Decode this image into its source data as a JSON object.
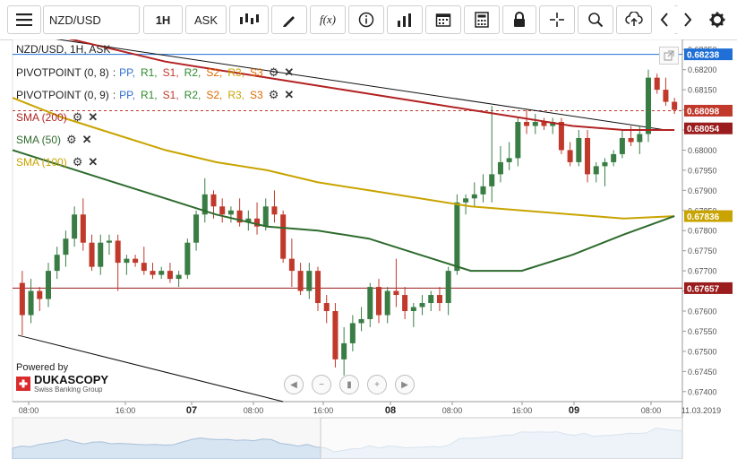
{
  "toolbar": {
    "menu_icon": "hamburger-menu-icon",
    "instrument": "NZD/USD",
    "period": "1H",
    "price_side": "ASK",
    "icons": [
      "chart-type-icon",
      "draw-pencil-icon",
      "function-icon",
      "info-icon",
      "indicators-icon",
      "calendar-icon",
      "calculator-icon",
      "lock-icon",
      "crosshair-icon",
      "zoom-icon",
      "upload-icon",
      "download-icon",
      "arrow-left-icon",
      "arrow-right-icon",
      "gear-icon"
    ]
  },
  "legend": {
    "title": "NZD/USD, 1H, ASK",
    "pivots": [
      {
        "name": "PIVOTPOINT (0, 8)",
        "colon": ":",
        "levels": [
          "PP,",
          "R1,",
          "S1,",
          "R2,",
          "S2,",
          "R3,",
          "S3"
        ]
      },
      {
        "name": "PIVOTPOINT (0, 9)",
        "colon": ":",
        "levels": [
          "PP,",
          "R1,",
          "S1,",
          "R2,",
          "S2,",
          "R3,",
          "S3"
        ]
      }
    ],
    "level_colors": [
      "#2f6fd0",
      "#2f8a2f",
      "#c0392b",
      "#2f8a2f",
      "#e06a00",
      "#c9a400",
      "#e06a00"
    ],
    "smas": [
      {
        "label": "SMA (200)",
        "color": "#b22222"
      },
      {
        "label": "SMA (50)",
        "color": "#2e6b2e"
      },
      {
        "label": "SMA (100)",
        "color": "#c9a400"
      }
    ]
  },
  "branding": {
    "powered_by": "Powered by",
    "name": "DUKASCOPY",
    "tagline": "Swiss Banking Group"
  },
  "nav_icons": [
    "scroll-left-icon",
    "zoom-out-icon",
    "reset-icon",
    "zoom-in-icon",
    "scroll-right-icon"
  ],
  "price_labels": [
    {
      "text": "0.68238",
      "value": 0.68238,
      "bg": "#1f6fd6"
    },
    {
      "text": "0.68098",
      "value": 0.68098,
      "bg": "#c0392b"
    },
    {
      "text": "0.68054",
      "value": 0.68054,
      "bg": "#9b1c1c"
    },
    {
      "text": "0.67836",
      "value": 0.67836,
      "bg": "#c9a400"
    },
    {
      "text": "0.67657",
      "value": 0.67657,
      "bg": "#9b1c1c"
    }
  ],
  "chart_data": {
    "type": "candlestick",
    "instrument": "NZD/USD",
    "timeframe": "1H",
    "y_axis": {
      "min": 0.67375,
      "max": 0.68275,
      "ticks": [
        "0.68250",
        "0.68200",
        "0.68150",
        "0.68100",
        "0.68050",
        "0.68000",
        "0.67950",
        "0.67900",
        "0.67850",
        "0.67800",
        "0.67750",
        "0.67700",
        "0.67650",
        "0.67600",
        "0.67550",
        "0.67500",
        "0.67450",
        "0.67400"
      ]
    },
    "x_axis": {
      "labels": [
        "08:00",
        "16:00",
        "07",
        "08:00",
        "16:00",
        "08",
        "08:00",
        "16:00",
        "09",
        "08:00",
        "11.03.2019"
      ],
      "bold": [
        "07",
        "08",
        "09"
      ]
    },
    "candles": [
      [
        0.6767,
        0.677,
        0.6754,
        0.6759
      ],
      [
        0.6759,
        0.6768,
        0.6757,
        0.6765
      ],
      [
        0.6765,
        0.6766,
        0.676,
        0.6763
      ],
      [
        0.6763,
        0.6772,
        0.6761,
        0.677
      ],
      [
        0.677,
        0.6776,
        0.6768,
        0.6774
      ],
      [
        0.6774,
        0.678,
        0.6771,
        0.6778
      ],
      [
        0.6778,
        0.6786,
        0.6776,
        0.6784
      ],
      [
        0.6784,
        0.6788,
        0.6775,
        0.6777
      ],
      [
        0.6777,
        0.6779,
        0.677,
        0.6771
      ],
      [
        0.6771,
        0.6779,
        0.6769,
        0.6777
      ],
      [
        0.6777,
        0.6779,
        0.6774,
        0.67775
      ],
      [
        0.67775,
        0.6779,
        0.6765,
        0.6772
      ],
      [
        0.6772,
        0.6774,
        0.6769,
        0.6773
      ],
      [
        0.6773,
        0.6774,
        0.6771,
        0.6772
      ],
      [
        0.6772,
        0.6776,
        0.6769,
        0.677
      ],
      [
        0.677,
        0.6772,
        0.6768,
        0.6769
      ],
      [
        0.6769,
        0.6771,
        0.6768,
        0.677
      ],
      [
        0.677,
        0.6772,
        0.6767,
        0.6768
      ],
      [
        0.6768,
        0.677,
        0.6766,
        0.6769
      ],
      [
        0.6769,
        0.6778,
        0.6768,
        0.6777
      ],
      [
        0.6777,
        0.6785,
        0.6775,
        0.6784
      ],
      [
        0.6784,
        0.6793,
        0.6782,
        0.6789
      ],
      [
        0.6789,
        0.679,
        0.6783,
        0.6786
      ],
      [
        0.6786,
        0.6788,
        0.6782,
        0.6784
      ],
      [
        0.6784,
        0.6786,
        0.6782,
        0.6785
      ],
      [
        0.6785,
        0.6788,
        0.6781,
        0.6782
      ],
      [
        0.6782,
        0.6785,
        0.678,
        0.6783
      ],
      [
        0.6783,
        0.6787,
        0.6779,
        0.6781
      ],
      [
        0.6781,
        0.6788,
        0.678,
        0.6786
      ],
      [
        0.6786,
        0.679,
        0.6782,
        0.6784
      ],
      [
        0.6784,
        0.6785,
        0.6772,
        0.6773
      ],
      [
        0.6773,
        0.6778,
        0.6766,
        0.677
      ],
      [
        0.677,
        0.6772,
        0.6764,
        0.6765
      ],
      [
        0.6765,
        0.6772,
        0.6763,
        0.677
      ],
      [
        0.677,
        0.6771,
        0.676,
        0.6762
      ],
      [
        0.6762,
        0.6764,
        0.6757,
        0.676
      ],
      [
        0.676,
        0.6762,
        0.6746,
        0.6748
      ],
      [
        0.6748,
        0.6756,
        0.6744,
        0.6752
      ],
      [
        0.6752,
        0.6759,
        0.675,
        0.6757
      ],
      [
        0.6757,
        0.6761,
        0.6755,
        0.6758
      ],
      [
        0.6758,
        0.6767,
        0.6756,
        0.6766
      ],
      [
        0.6766,
        0.6768,
        0.6757,
        0.6759
      ],
      [
        0.6759,
        0.6766,
        0.6757,
        0.6765
      ],
      [
        0.6765,
        0.6773,
        0.6761,
        0.6764
      ],
      [
        0.6764,
        0.6766,
        0.6758,
        0.676
      ],
      [
        0.676,
        0.6762,
        0.6756,
        0.6761
      ],
      [
        0.6761,
        0.6764,
        0.6759,
        0.6762
      ],
      [
        0.6762,
        0.6765,
        0.676,
        0.6764
      ],
      [
        0.6764,
        0.6766,
        0.676,
        0.6762
      ],
      [
        0.6762,
        0.6771,
        0.6759,
        0.677
      ],
      [
        0.677,
        0.6789,
        0.6769,
        0.6787
      ],
      [
        0.6787,
        0.6789,
        0.6784,
        0.6788
      ],
      [
        0.6788,
        0.6792,
        0.6786,
        0.6789
      ],
      [
        0.6789,
        0.6794,
        0.6787,
        0.6791
      ],
      [
        0.6791,
        0.6811,
        0.6787,
        0.6794
      ],
      [
        0.6794,
        0.6801,
        0.6792,
        0.6797
      ],
      [
        0.6797,
        0.6802,
        0.6795,
        0.6798
      ],
      [
        0.6798,
        0.6808,
        0.6796,
        0.6807
      ],
      [
        0.6807,
        0.681,
        0.6804,
        0.6806
      ],
      [
        0.6806,
        0.6809,
        0.6804,
        0.6807
      ],
      [
        0.6807,
        0.6808,
        0.6805,
        0.6806
      ],
      [
        0.6806,
        0.6808,
        0.6804,
        0.6807
      ],
      [
        0.6807,
        0.6808,
        0.6799,
        0.68
      ],
      [
        0.68,
        0.6802,
        0.6796,
        0.6797
      ],
      [
        0.6797,
        0.6805,
        0.6796,
        0.6803
      ],
      [
        0.6803,
        0.6805,
        0.6792,
        0.6794
      ],
      [
        0.6794,
        0.6797,
        0.6792,
        0.6796
      ],
      [
        0.6796,
        0.6798,
        0.6791,
        0.6797
      ],
      [
        0.6797,
        0.68,
        0.6796,
        0.6799
      ],
      [
        0.6799,
        0.6805,
        0.6798,
        0.6803
      ],
      [
        0.6803,
        0.6806,
        0.6801,
        0.6802
      ],
      [
        0.6802,
        0.6806,
        0.6799,
        0.6804
      ],
      [
        0.6804,
        0.682,
        0.6802,
        0.6818
      ],
      [
        0.6818,
        0.6819,
        0.6814,
        0.6815
      ],
      [
        0.6815,
        0.6818,
        0.6811,
        0.6812
      ],
      [
        0.6812,
        0.6813,
        0.6809,
        0.681
      ]
    ],
    "sma_200": [
      0.683,
      0.6828,
      0.6825,
      0.6822,
      0.682,
      0.6818,
      0.6816,
      0.6814,
      0.6812,
      0.681,
      0.6808,
      0.6806,
      0.6805,
      0.6805
    ],
    "sma_50": [
      0.68,
      0.6796,
      0.6792,
      0.6788,
      0.6784,
      0.6781,
      0.678,
      0.6778,
      0.6774,
      0.677,
      0.677,
      0.6774,
      0.6779,
      0.67836
    ],
    "sma_100": [
      0.6813,
      0.6808,
      0.6804,
      0.68,
      0.6797,
      0.6795,
      0.6792,
      0.679,
      0.6788,
      0.6786,
      0.6785,
      0.6784,
      0.6783,
      0.67836
    ],
    "horizontal_lines": [
      {
        "value": 0.68238,
        "color": "#1f6fd6",
        "style": "solid"
      },
      {
        "value": 0.68098,
        "color": "#c0392b",
        "style": "dashed"
      },
      {
        "value": 0.67657,
        "color": "#9b1c1c",
        "style": "solid"
      }
    ],
    "trend_lines": [
      {
        "from": [
          0,
          0.6829
        ],
        "to": [
          74,
          0.6805
        ]
      },
      {
        "from": [
          0,
          0.6754
        ],
        "to": [
          30,
          0.67375
        ]
      }
    ],
    "colors": {
      "up": "#3a7d44",
      "down": "#c0392b"
    }
  }
}
